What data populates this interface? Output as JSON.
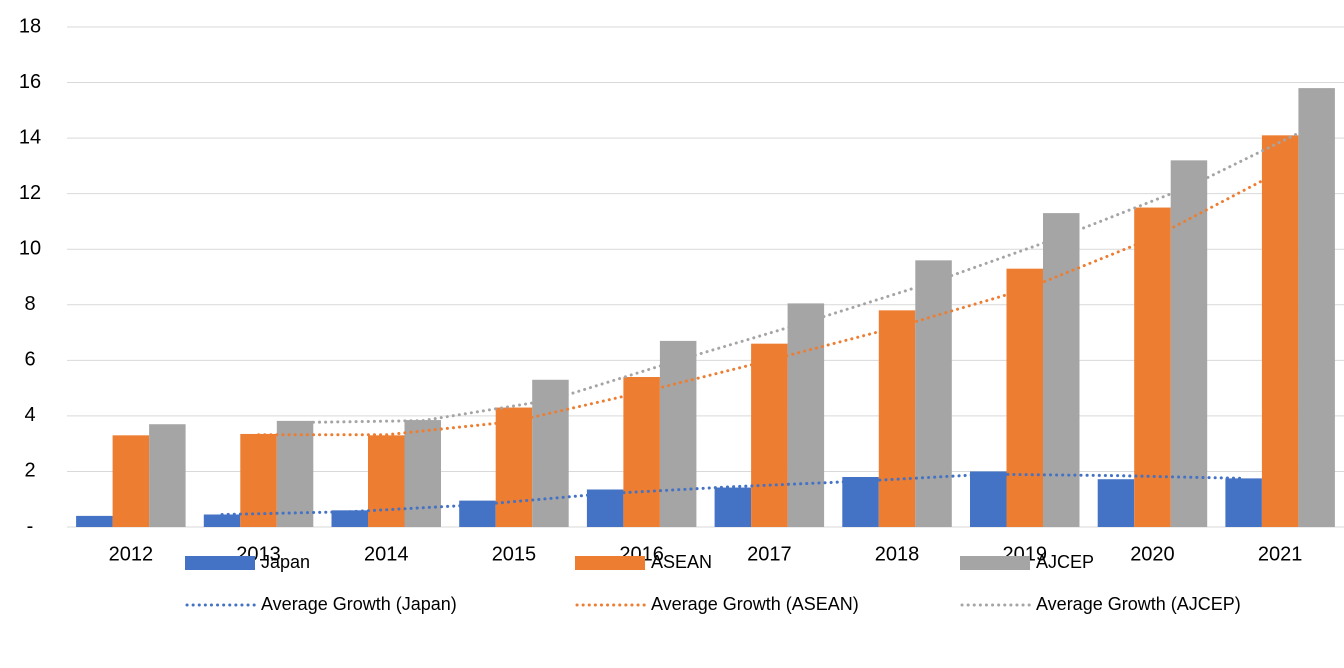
{
  "chart_data": {
    "type": "bar",
    "categories": [
      "2012",
      "2013",
      "2014",
      "2015",
      "2016",
      "2017",
      "2018",
      "2019",
      "2020",
      "2021"
    ],
    "series": [
      {
        "name": "Japan",
        "type": "bar",
        "color": "#4472c4",
        "values": [
          0.4,
          0.45,
          0.6,
          0.95,
          1.35,
          1.42,
          1.8,
          2.0,
          1.72,
          1.75
        ]
      },
      {
        "name": "ASEAN",
        "type": "bar",
        "color": "#ed7d31",
        "values": [
          3.3,
          3.35,
          3.3,
          4.3,
          5.4,
          6.6,
          7.8,
          9.3,
          11.5,
          14.1
        ]
      },
      {
        "name": "AJCEP",
        "type": "bar",
        "color": "#a5a5a5",
        "values": [
          3.7,
          3.82,
          3.85,
          5.3,
          6.7,
          8.05,
          9.6,
          11.3,
          13.2,
          15.8
        ]
      },
      {
        "name": "Average Growth (Japan)",
        "type": "line",
        "color": "#4472c4",
        "values": [
          null,
          0.45,
          0.55,
          0.8,
          1.2,
          1.45,
          1.65,
          1.9,
          1.85,
          1.75
        ]
      },
      {
        "name": "Average Growth (ASEAN)",
        "type": "line",
        "color": "#ed7d31",
        "values": [
          null,
          3.32,
          3.32,
          3.8,
          4.85,
          6.0,
          7.2,
          8.55,
          10.4,
          12.8
        ]
      },
      {
        "name": "Average Growth (AJCEP)",
        "type": "line",
        "color": "#a5a5a5",
        "values": [
          null,
          3.76,
          3.83,
          4.57,
          6.0,
          7.37,
          8.82,
          10.45,
          12.25,
          14.5
        ]
      }
    ],
    "ylim": [
      0,
      18
    ],
    "yticks": [
      {
        "value": 0,
        "label": "-"
      },
      2,
      4,
      6,
      8,
      10,
      12,
      14,
      16,
      18
    ],
    "grid": true,
    "legend": "bottom"
  }
}
